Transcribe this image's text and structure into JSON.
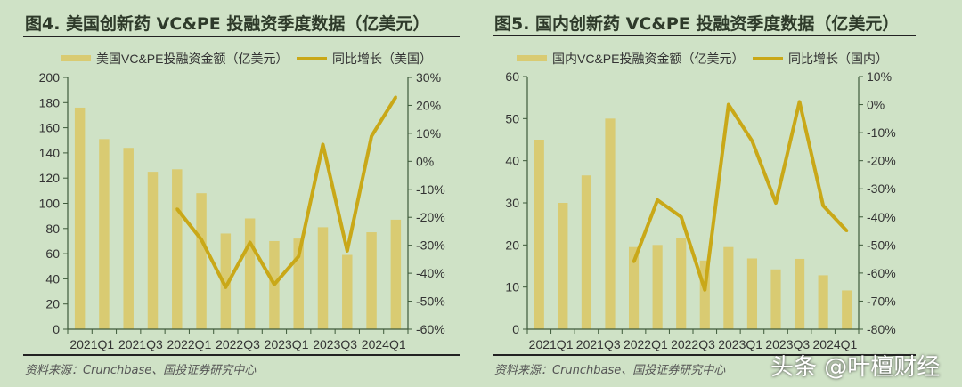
{
  "colors": {
    "bar": "#d9cb72",
    "line": "#c9a818",
    "axis": "#3e5a3a",
    "background": "#cfe2c6"
  },
  "watermark": "头条 @叶檀财经",
  "chart_data": [
    {
      "type": "bar+line",
      "title": "图4. 美国创新药 VC&PE 投融资季度数据（亿美元）",
      "source": "资料来源：Crunchbase、国投证券研究中心",
      "categories": [
        "2021Q1",
        "2021Q2",
        "2021Q3",
        "2021Q4",
        "2022Q1",
        "2022Q2",
        "2022Q3",
        "2022Q4",
        "2023Q1",
        "2023Q2",
        "2023Q3",
        "2023Q4",
        "2024Q1",
        "2024Q2"
      ],
      "xtick_labels": [
        "2021Q1",
        "2021Q3",
        "2022Q1",
        "2022Q3",
        "2023Q1",
        "2023Q3",
        "2024Q1"
      ],
      "left_axis": {
        "ylim": [
          0,
          200
        ],
        "ticks": [
          "0",
          "20",
          "40",
          "60",
          "80",
          "100",
          "120",
          "140",
          "160",
          "180",
          "200"
        ]
      },
      "right_axis": {
        "ylim": [
          -60,
          30
        ],
        "ticks": [
          "-60%",
          "-50%",
          "-40%",
          "-30%",
          "-20%",
          "-10%",
          "0%",
          "10%",
          "20%",
          "30%"
        ]
      },
      "legend": "top",
      "series": [
        {
          "name": "美国VC&PE投融资金额（亿美元）",
          "type": "bar",
          "axis": "left",
          "values": [
            176,
            151,
            144,
            125,
            127,
            108,
            76,
            88,
            70,
            72,
            81,
            59,
            77,
            87
          ]
        },
        {
          "name": "同比增长（美国）",
          "type": "line",
          "axis": "right",
          "values": [
            null,
            null,
            null,
            null,
            -17,
            -28,
            -45,
            -29,
            -44,
            -34,
            6,
            -32,
            9,
            23
          ]
        }
      ]
    },
    {
      "type": "bar+line",
      "title": "图5. 国内创新药 VC&PE 投融资季度数据（亿美元）",
      "source": "资料来源：Crunchbase、国投证券研究中心",
      "categories": [
        "2021Q1",
        "2021Q2",
        "2021Q3",
        "2021Q4",
        "2022Q1",
        "2022Q2",
        "2022Q3",
        "2022Q4",
        "2023Q1",
        "2023Q2",
        "2023Q3",
        "2023Q4",
        "2024Q1",
        "2024Q2"
      ],
      "xtick_labels": [
        "2021Q1",
        "2021Q3",
        "2022Q1",
        "2022Q3",
        "2023Q1",
        "2023Q3",
        "2024Q1"
      ],
      "left_axis": {
        "ylim": [
          0,
          60
        ],
        "ticks": [
          "0",
          "10",
          "20",
          "30",
          "40",
          "50",
          "60"
        ]
      },
      "right_axis": {
        "ylim": [
          -80,
          10
        ],
        "ticks": [
          "-80%",
          "-70%",
          "-60%",
          "-50%",
          "-40%",
          "-30%",
          "-20%",
          "-10%",
          "0%",
          "10%"
        ]
      },
      "legend": "top",
      "series": [
        {
          "name": "国内VC&PE投融资金额（亿美元）",
          "type": "bar",
          "axis": "left",
          "values": [
            45,
            30,
            36.5,
            50,
            19.5,
            20,
            21.7,
            16.3,
            19.5,
            16.8,
            14.2,
            16.7,
            12.8,
            9.2
          ]
        },
        {
          "name": "同比增长（国内）",
          "type": "line",
          "axis": "right",
          "values": [
            null,
            null,
            null,
            null,
            -56,
            -34,
            -40,
            -66,
            0,
            -13,
            -35,
            1,
            -36,
            -45
          ]
        }
      ]
    }
  ]
}
